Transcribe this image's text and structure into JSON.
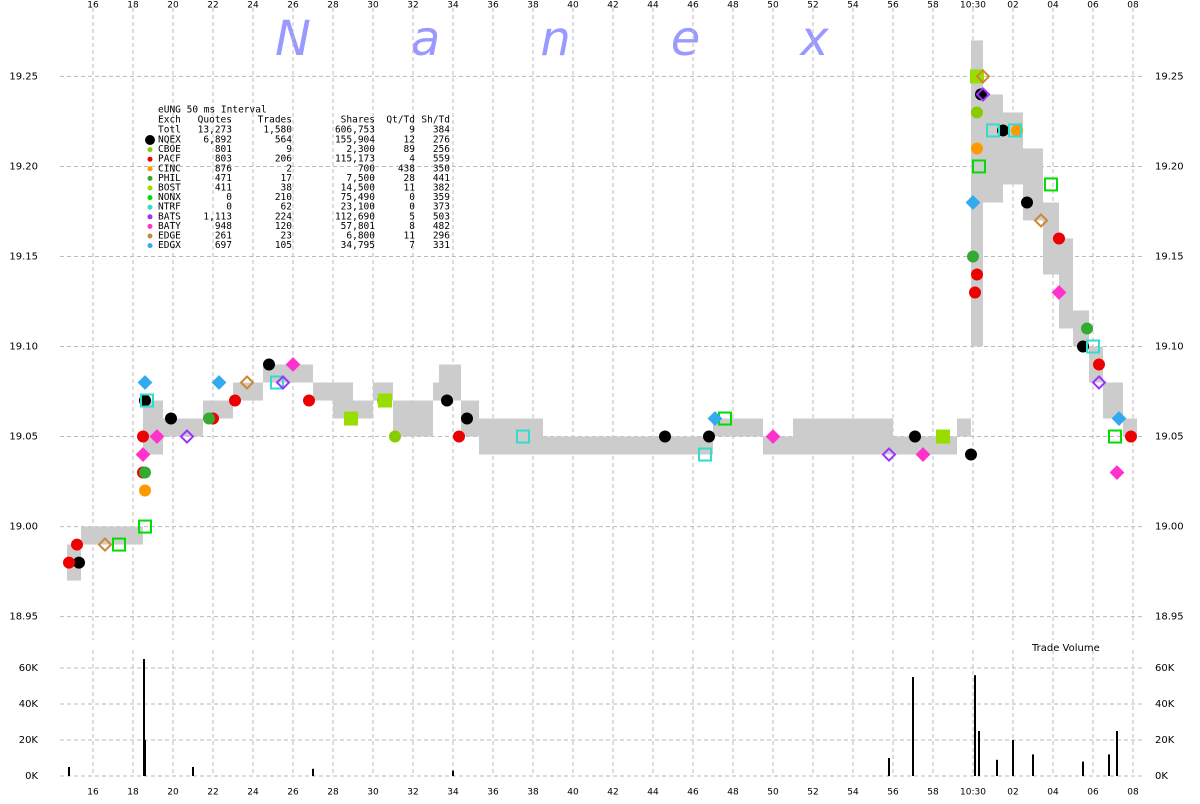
{
  "watermark": "Nanex",
  "chart_data": [
    {
      "type": "scatter",
      "xlim": [
        14.35,
        68.6
      ],
      "ylim": [
        18.937,
        19.288
      ],
      "xticks": [
        16,
        18,
        20,
        22,
        24,
        26,
        28,
        30,
        32,
        34,
        36,
        38,
        40,
        42,
        44,
        46,
        48,
        50,
        52,
        54,
        56,
        58,
        {
          "value": 60,
          "label": "10:30"
        },
        {
          "value": 62,
          "label": "02"
        },
        {
          "value": 64,
          "label": "04"
        },
        {
          "value": 66,
          "label": "06"
        },
        {
          "value": 68,
          "label": "08"
        }
      ],
      "yticks": [
        18.95,
        {
          "value": 19.0,
          "label": "19.00"
        },
        19.05,
        {
          "value": 19.1,
          "label": "19.10"
        },
        19.15,
        {
          "value": 19.2,
          "label": "19.20"
        },
        19.25
      ],
      "grid": true,
      "nbbo": {
        "color": "#cccccc",
        "x": [
          14.7,
          15.4,
          18.5,
          19.5,
          21.5,
          23,
          24.5,
          27,
          28,
          29,
          30,
          31,
          33,
          33.3,
          34.4,
          35.3,
          38.5,
          45,
          47,
          49.5,
          51,
          53,
          56,
          57.8,
          59.2,
          59.9,
          60.5,
          61.5,
          62.5,
          63.5,
          64.3,
          65,
          65.8,
          66.5,
          67.5
        ],
        "low": [
          18.97,
          18.99,
          19.04,
          19.05,
          19.06,
          19.07,
          19.08,
          19.07,
          19.06,
          19.06,
          19.07,
          19.05,
          19.07,
          19.07,
          19.05,
          19.04,
          19.04,
          19.04,
          19.05,
          19.04,
          19.04,
          19.04,
          19.04,
          19.04,
          19.05,
          19.1,
          19.18,
          19.19,
          19.17,
          19.14,
          19.11,
          19.1,
          19.08,
          19.06,
          19.05
        ],
        "high": [
          18.99,
          19.0,
          19.07,
          19.06,
          19.07,
          19.08,
          19.09,
          19.08,
          19.08,
          19.07,
          19.08,
          19.07,
          19.08,
          19.09,
          19.07,
          19.06,
          19.05,
          19.05,
          19.06,
          19.05,
          19.06,
          19.06,
          19.05,
          19.05,
          19.06,
          19.27,
          19.24,
          19.23,
          19.21,
          19.18,
          19.16,
          19.12,
          19.1,
          19.08,
          19.06
        ]
      },
      "legend": {
        "title": "eUNG 50 ms Interval",
        "columns": [
          "Exch",
          "Quotes",
          "Trades",
          "Shares",
          "Qt/Td",
          "Sh/Td"
        ],
        "total": {
          "name": "Totl",
          "stats": [
            "13,273",
            "1,580",
            "606,753",
            "9",
            "384"
          ]
        }
      },
      "series": [
        {
          "name": "NQEX",
          "color": "#000000",
          "marker": "circle",
          "filled": true,
          "stats": [
            "6,892",
            "564",
            "155,904",
            "12",
            "276"
          ],
          "x": [
            15.3,
            18.6,
            19.9,
            24.8,
            33.7,
            34.7,
            44.6,
            46.8,
            57.1,
            59.9,
            60.4,
            61.5,
            62.7,
            65.5
          ],
          "values": [
            18.98,
            19.07,
            19.06,
            19.09,
            19.07,
            19.06,
            19.05,
            19.05,
            19.05,
            19.04,
            19.24,
            19.22,
            19.18,
            19.1
          ]
        },
        {
          "name": "CBOE",
          "color": "#88cc00",
          "marker": "circle",
          "filled": true,
          "stats": [
            "801",
            "9",
            "2,300",
            "89",
            "256"
          ],
          "x": [
            30.5,
            31.1,
            60.2
          ],
          "values": [
            19.07,
            19.05,
            19.23
          ]
        },
        {
          "name": "PACF",
          "color": "#ee0000",
          "marker": "circle",
          "filled": true,
          "stats": [
            "803",
            "206",
            "115,173",
            "4",
            "559"
          ],
          "x": [
            14.8,
            15.2,
            18.5,
            18.5,
            22,
            23.1,
            26.8,
            34.3,
            60.1,
            60.2,
            64.3,
            66.3,
            67.9
          ],
          "values": [
            18.98,
            18.99,
            19.05,
            19.03,
            19.06,
            19.07,
            19.07,
            19.05,
            19.13,
            19.14,
            19.16,
            19.09,
            19.05
          ]
        },
        {
          "name": "CINC",
          "color": "#ff9900",
          "marker": "circle",
          "filled": true,
          "stats": [
            "876",
            "2",
            "700",
            "438",
            "350"
          ],
          "x": [
            18.6,
            60.2,
            62.2
          ],
          "values": [
            19.02,
            19.21,
            19.22
          ]
        },
        {
          "name": "PHIL",
          "color": "#33aa33",
          "marker": "circle",
          "filled": true,
          "stats": [
            "471",
            "17",
            "7,500",
            "28",
            "441"
          ],
          "x": [
            18.6,
            21.8,
            60,
            65.7
          ],
          "values": [
            19.03,
            19.06,
            19.15,
            19.11
          ]
        },
        {
          "name": "BOST",
          "color": "#99dd00",
          "marker": "square",
          "filled": true,
          "stats": [
            "411",
            "38",
            "14,500",
            "11",
            "382"
          ],
          "x": [
            28.9,
            30.6,
            58.5,
            60.2
          ],
          "values": [
            19.06,
            19.07,
            19.05,
            19.25
          ]
        },
        {
          "name": "NONX",
          "color": "#00dd00",
          "marker": "square",
          "filled": false,
          "stats": [
            "0",
            "210",
            "75,490",
            "0",
            "359"
          ],
          "x": [
            18.6,
            17.3,
            60.3,
            47.6,
            63.9,
            67.1
          ],
          "values": [
            19.0,
            18.99,
            19.2,
            19.06,
            19.19,
            19.05
          ]
        },
        {
          "name": "NTRF",
          "color": "#33ddcc",
          "marker": "square",
          "filled": false,
          "stats": [
            "0",
            "62",
            "23,100",
            "0",
            "373"
          ],
          "x": [
            18.7,
            25.2,
            37.5,
            46.6,
            61,
            62.1,
            66
          ],
          "values": [
            19.07,
            19.08,
            19.05,
            19.04,
            19.22,
            19.22,
            19.1
          ]
        },
        {
          "name": "BATS",
          "color": "#9933ff",
          "marker": "diamond",
          "filled": false,
          "stats": [
            "1,113",
            "224",
            "112,690",
            "5",
            "503"
          ],
          "x": [
            20.7,
            25.5,
            55.8,
            60.5,
            66.3
          ],
          "values": [
            19.05,
            19.08,
            19.04,
            19.24,
            19.08
          ]
        },
        {
          "name": "BATY",
          "color": "#ff33cc",
          "marker": "diamond",
          "filled": true,
          "stats": [
            "948",
            "120",
            "57,801",
            "8",
            "482"
          ],
          "x": [
            18.5,
            19.2,
            26,
            50,
            57.5,
            64.3,
            67.2
          ],
          "values": [
            19.04,
            19.05,
            19.09,
            19.05,
            19.04,
            19.13,
            19.03
          ]
        },
        {
          "name": "EDGE",
          "color": "#cc8833",
          "marker": "diamond",
          "filled": false,
          "stats": [
            "261",
            "23",
            "6,800",
            "11",
            "296"
          ],
          "x": [
            16.6,
            23.7,
            63.4,
            60.5
          ],
          "values": [
            18.99,
            19.08,
            19.17,
            19.25
          ]
        },
        {
          "name": "EDGX",
          "color": "#33aaee",
          "marker": "diamond",
          "filled": true,
          "stats": [
            "697",
            "105",
            "34,795",
            "7",
            "331"
          ],
          "x": [
            18.6,
            22.3,
            47.1,
            60,
            67.3
          ],
          "values": [
            19.08,
            19.08,
            19.06,
            19.18,
            19.06
          ]
        }
      ]
    },
    {
      "type": "bar",
      "annotation": "Trade Volume",
      "color": "#000000",
      "xlim": [
        14.35,
        68.6
      ],
      "ylim": [
        0,
        70000
      ],
      "xticks": [
        16,
        18,
        20,
        22,
        24,
        26,
        28,
        30,
        32,
        34,
        36,
        38,
        40,
        42,
        44,
        46,
        48,
        50,
        52,
        54,
        56,
        58,
        {
          "value": 60,
          "label": "10:30"
        },
        {
          "value": 62,
          "label": "02"
        },
        {
          "value": 64,
          "label": "04"
        },
        {
          "value": 66,
          "label": "06"
        },
        {
          "value": 68,
          "label": "08"
        }
      ],
      "yticks": [
        {
          "value": 0,
          "label": "0K"
        },
        {
          "value": 20000,
          "label": "20K"
        },
        {
          "value": 40000,
          "label": "40K"
        },
        {
          "value": 60000,
          "label": "60K"
        }
      ],
      "grid": true,
      "x": [
        14.8,
        18.55,
        18.6,
        21,
        27,
        34,
        55.8,
        57,
        60.1,
        60.3,
        61.2,
        62,
        63,
        65.5,
        66.8,
        67.2
      ],
      "values": [
        5000,
        65000,
        20000,
        5000,
        4000,
        3000,
        10000,
        55000,
        56000,
        25000,
        9000,
        20000,
        12000,
        8000,
        12000,
        25000
      ]
    }
  ]
}
